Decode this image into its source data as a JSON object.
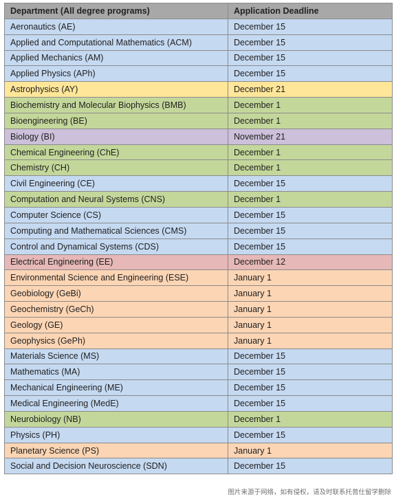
{
  "header": {
    "department": "Department (All degree programs)",
    "deadline": "Application Deadline"
  },
  "colors": {
    "blue": "#c5d9f1",
    "yellow": "#ffe699",
    "green": "#c4d79b",
    "purple": "#ccc0da",
    "red": "#e6b8b7",
    "orange": "#fcd5b4",
    "header": "#a8a8a8"
  },
  "rows": [
    {
      "department": "Aeronautics (AE)",
      "deadline": "December 15",
      "color": "blue"
    },
    {
      "department": "Applied and Computational Mathematics (ACM)",
      "deadline": "December 15",
      "color": "blue"
    },
    {
      "department": "Applied Mechanics (AM)",
      "deadline": "December 15",
      "color": "blue"
    },
    {
      "department": "Applied Physics (APh)",
      "deadline": "December 15",
      "color": "blue"
    },
    {
      "department": "Astrophysics (AY)",
      "deadline": "December 21",
      "color": "yellow"
    },
    {
      "department": "Biochemistry and Molecular Biophysics (BMB)",
      "deadline": "December 1",
      "color": "green"
    },
    {
      "department": "Bioengineering (BE)",
      "deadline": "December 1",
      "color": "green"
    },
    {
      "department": "Biology (BI)",
      "deadline": "November 21",
      "color": "purple"
    },
    {
      "department": "Chemical Engineering (ChE)",
      "deadline": "December 1",
      "color": "green"
    },
    {
      "department": "Chemistry (CH)",
      "deadline": "December 1",
      "color": "green"
    },
    {
      "department": "Civil Engineering (CE)",
      "deadline": "December 15",
      "color": "blue"
    },
    {
      "department": "Computation and Neural Systems (CNS)",
      "deadline": "December 1",
      "color": "green"
    },
    {
      "department": "Computer Science (CS)",
      "deadline": "December 15",
      "color": "blue"
    },
    {
      "department": "Computing and Mathematical Sciences (CMS)",
      "deadline": "December 15",
      "color": "blue"
    },
    {
      "department": "Control and Dynamical Systems (CDS)",
      "deadline": "December 15",
      "color": "blue"
    },
    {
      "department": "Electrical Engineering (EE)",
      "deadline": "December 12",
      "color": "red"
    },
    {
      "department": "Environmental Science and Engineering (ESE)",
      "deadline": "January 1",
      "color": "orange"
    },
    {
      "department": "Geobiology (GeBi)",
      "deadline": "January 1",
      "color": "orange"
    },
    {
      "department": "Geochemistry (GeCh)",
      "deadline": "January 1",
      "color": "orange"
    },
    {
      "department": "Geology (GE)",
      "deadline": "January 1",
      "color": "orange"
    },
    {
      "department": "Geophysics (GePh)",
      "deadline": "January 1",
      "color": "orange"
    },
    {
      "department": "Materials Science (MS)",
      "deadline": "December 15",
      "color": "blue"
    },
    {
      "department": "Mathematics (MA)",
      "deadline": "December 15",
      "color": "blue"
    },
    {
      "department": "Mechanical Engineering (ME)",
      "deadline": "December 15",
      "color": "blue"
    },
    {
      "department": "Medical Engineering (MedE)",
      "deadline": "December 15",
      "color": "blue"
    },
    {
      "department": "Neurobiology (NB)",
      "deadline": "December 1",
      "color": "green"
    },
    {
      "department": "Physics (PH)",
      "deadline": "December 15",
      "color": "blue"
    },
    {
      "department": "Planetary Science (PS)",
      "deadline": "January 1",
      "color": "orange"
    },
    {
      "department": "Social and Decision Neuroscience (SDN)",
      "deadline": "December 15",
      "color": "blue"
    }
  ],
  "watermark": "图片来源于网络，如有侵权，请及时联系托普仕留学删除"
}
